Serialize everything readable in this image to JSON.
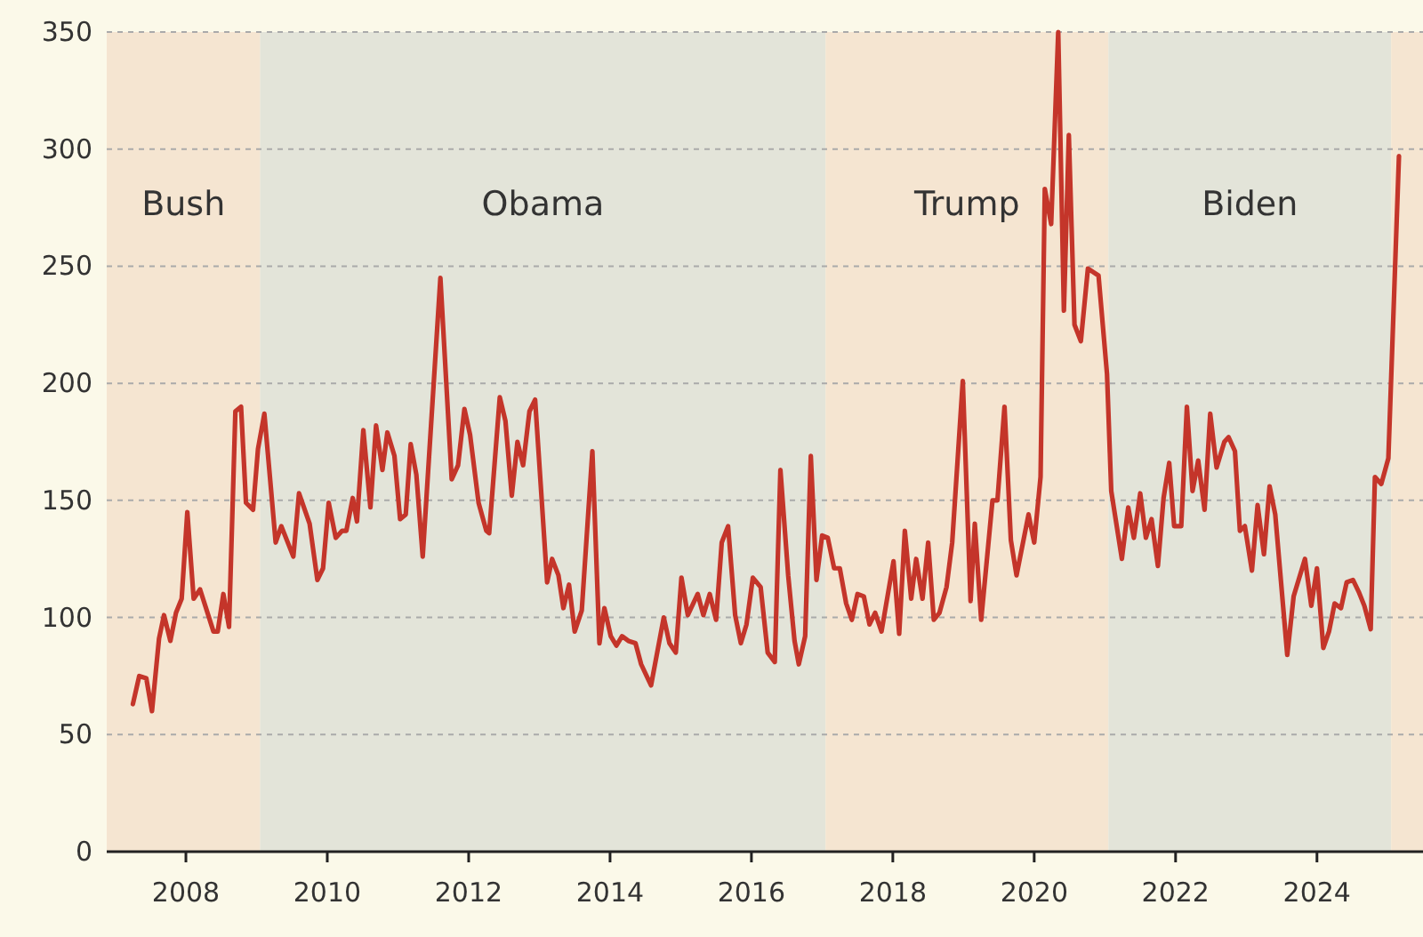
{
  "chart_data": {
    "type": "line",
    "x": [
      2007.25,
      2007.34,
      2007.44,
      2007.52,
      2007.62,
      2007.69,
      2007.78,
      2007.86,
      2007.94,
      2008.02,
      2008.11,
      2008.2,
      2008.39,
      2008.45,
      2008.53,
      2008.61,
      2008.7,
      2008.78,
      2008.85,
      2008.95,
      2009.02,
      2009.11,
      2009.27,
      2009.35,
      2009.52,
      2009.6,
      2009.75,
      2009.86,
      2009.94,
      2010.02,
      2010.12,
      2010.21,
      2010.27,
      2010.36,
      2010.42,
      2010.51,
      2010.61,
      2010.69,
      2010.78,
      2010.85,
      2010.95,
      2011.03,
      2011.11,
      2011.18,
      2011.26,
      2011.35,
      2011.6,
      2011.76,
      2011.85,
      2011.94,
      2012.02,
      2012.14,
      2012.25,
      2012.29,
      2012.44,
      2012.52,
      2012.61,
      2012.69,
      2012.77,
      2012.86,
      2012.94,
      2013.11,
      2013.18,
      2013.27,
      2013.34,
      2013.42,
      2013.5,
      2013.6,
      2013.75,
      2013.85,
      2013.92,
      2014.01,
      2014.09,
      2014.17,
      2014.26,
      2014.36,
      2014.44,
      2014.58,
      2014.76,
      2014.84,
      2014.93,
      2015.01,
      2015.1,
      2015.24,
      2015.32,
      2015.41,
      2015.5,
      2015.58,
      2015.67,
      2015.77,
      2015.85,
      2015.93,
      2016.02,
      2016.13,
      2016.23,
      2016.33,
      2016.41,
      2016.52,
      2016.61,
      2016.67,
      2016.76,
      2016.84,
      2016.92,
      2017.0,
      2017.08,
      2017.17,
      2017.25,
      2017.34,
      2017.42,
      2017.5,
      2017.59,
      2017.67,
      2017.75,
      2017.84,
      2018.01,
      2018.09,
      2018.17,
      2018.26,
      2018.33,
      2018.42,
      2018.5,
      2018.58,
      2018.66,
      2018.76,
      2018.84,
      2018.99,
      2019.1,
      2019.16,
      2019.25,
      2019.41,
      2019.48,
      2019.58,
      2019.67,
      2019.75,
      2019.92,
      2020.0,
      2020.09,
      2020.15,
      2020.24,
      2020.34,
      2020.42,
      2020.49,
      2020.57,
      2020.66,
      2020.76,
      2020.91,
      2021.03,
      2021.09,
      2021.24,
      2021.33,
      2021.41,
      2021.5,
      2021.58,
      2021.66,
      2021.75,
      2021.83,
      2021.91,
      2021.98,
      2022.08,
      2022.16,
      2022.24,
      2022.32,
      2022.41,
      2022.49,
      2022.58,
      2022.69,
      2022.75,
      2022.84,
      2022.91,
      2022.98,
      2023.08,
      2023.16,
      2023.25,
      2023.33,
      2023.41,
      2023.58,
      2023.67,
      2023.83,
      2023.92,
      2024.0,
      2024.09,
      2024.17,
      2024.25,
      2024.34,
      2024.42,
      2024.51,
      2024.59,
      2024.67,
      2024.76,
      2024.82,
      2024.91,
      2025.01,
      2025.16
    ],
    "series": [
      {
        "color": "#c4352a",
        "values": [
          63,
          75,
          74,
          60,
          91,
          101,
          90,
          102,
          108,
          145,
          108,
          112,
          94,
          94,
          110,
          96,
          188,
          190,
          149,
          146,
          172,
          187,
          132,
          139,
          126,
          153,
          140,
          116,
          121,
          149,
          134,
          137,
          137,
          151,
          141,
          180,
          147,
          182,
          163,
          179,
          169,
          142,
          144,
          174,
          161,
          126,
          245,
          159,
          165,
          189,
          178,
          149,
          137,
          136,
          194,
          184,
          152,
          175,
          165,
          188,
          193,
          115,
          125,
          118,
          104,
          114,
          94,
          103,
          171,
          89,
          104,
          92,
          88,
          92,
          90,
          89,
          80,
          71,
          100,
          89,
          85,
          117,
          101,
          110,
          101,
          110,
          99,
          132,
          139,
          101,
          89,
          97,
          117,
          113,
          85,
          81,
          163,
          118,
          90,
          80,
          92,
          169,
          116,
          135,
          134,
          121,
          121,
          106,
          99,
          110,
          109,
          97,
          102,
          94,
          124,
          93,
          137,
          108,
          125,
          108,
          132,
          99,
          102,
          113,
          132,
          201,
          107,
          140,
          99,
          150,
          150,
          190,
          133,
          118,
          144,
          132,
          160,
          283,
          268,
          350,
          231,
          306,
          225,
          218,
          249,
          246,
          204,
          154,
          125,
          147,
          134,
          153,
          134,
          142,
          122,
          151,
          166,
          139,
          139,
          190,
          154,
          167,
          146,
          187,
          164,
          175,
          177,
          171,
          137,
          139,
          120,
          148,
          127,
          156,
          144,
          84,
          109,
          125,
          105,
          121,
          87,
          94,
          106,
          104,
          115,
          116,
          111,
          105,
          95,
          160,
          157,
          168,
          297
        ]
      }
    ],
    "xlim": [
      2006.88,
      2025.5
    ],
    "xticks": [
      2008,
      2010,
      2012,
      2014,
      2016,
      2018,
      2020,
      2022,
      2024
    ],
    "ylim": [
      0,
      350
    ],
    "yticks": [
      0,
      50,
      100,
      150,
      200,
      250,
      300,
      350
    ],
    "grid": "y",
    "line_style": "solid",
    "marker": "none",
    "bands": [
      {
        "axis": "x",
        "from": 2006.88,
        "to": 2009.05,
        "label": "Bush",
        "color": "#f5e5d1"
      },
      {
        "axis": "x",
        "from": 2009.05,
        "to": 2017.05,
        "label": "Obama",
        "color": "#e3e4d9"
      },
      {
        "axis": "x",
        "from": 2017.05,
        "to": 2021.05,
        "label": "Trump",
        "color": "#f5e5d1"
      },
      {
        "axis": "x",
        "from": 2021.05,
        "to": 2025.05,
        "label": "Biden",
        "color": "#e3e4d9"
      },
      {
        "axis": "x",
        "from": 2025.05,
        "to": 2025.5,
        "color": "#f5e5d1"
      }
    ]
  }
}
